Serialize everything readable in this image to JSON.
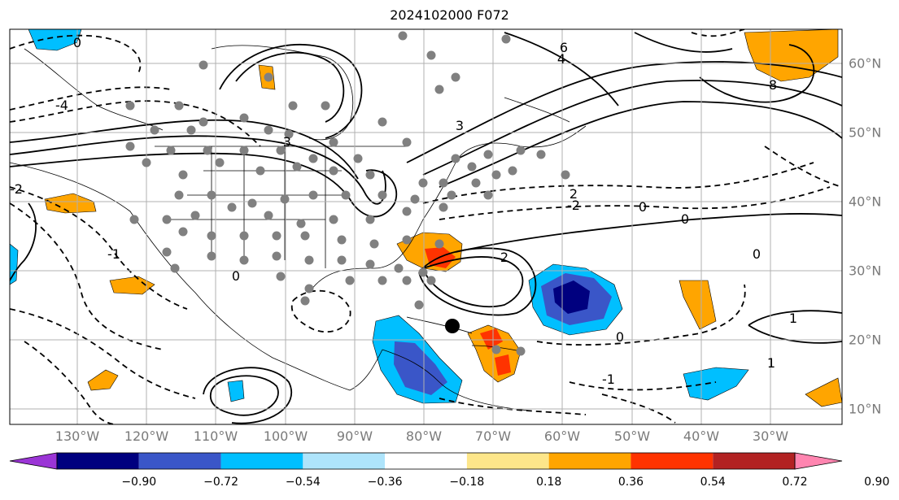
{
  "title": "2024102000 F072",
  "colors": {
    "ocean_land": "#ffffff",
    "grid": "#b0b0b0",
    "contour": "#000000",
    "point": "#808080",
    "marker": "#000000"
  },
  "longitude_labels": [
    "130°W",
    "120°W",
    "110°W",
    "100°W",
    "90°W",
    "80°W",
    "70°W",
    "60°W",
    "50°W",
    "40°W",
    "30°W"
  ],
  "latitude_labels": [
    "60°N",
    "50°N",
    "40°N",
    "30°N",
    "20°N",
    "10°N"
  ],
  "colorbar": {
    "labels": [
      "−0.90",
      "−0.72",
      "−0.54",
      "−0.36",
      "−0.18",
      "0.18",
      "0.36",
      "0.54",
      "0.72",
      "0.90"
    ],
    "colors": [
      "#9b35d6",
      "#00007f",
      "#3a56c8",
      "#00bfff",
      "#aee4fb",
      "#ffffff",
      "#fde68a",
      "#ffa500",
      "#ff3300",
      "#b22222",
      "#ff85b0"
    ]
  },
  "contour_labels": [
    "6",
    "4",
    "-4",
    "0",
    "2",
    "-2",
    "-1",
    "1",
    "8",
    "3",
    "-3",
    "0",
    "0",
    "0",
    "-1",
    "1",
    "2",
    "0",
    "-2",
    "0"
  ]
}
